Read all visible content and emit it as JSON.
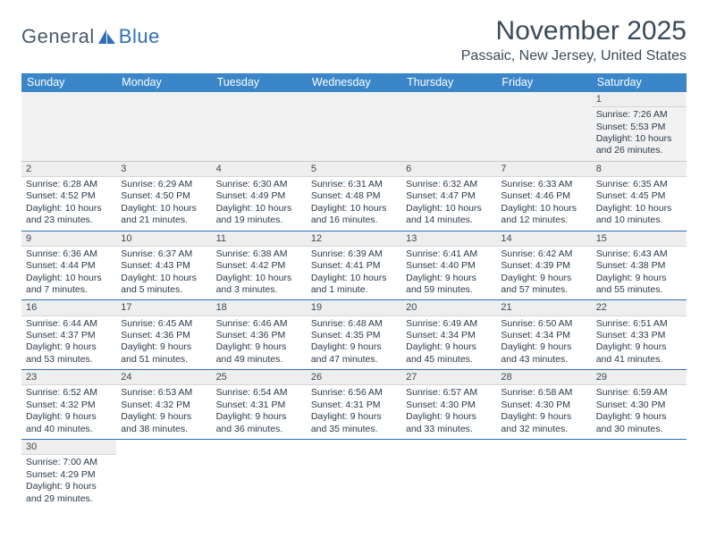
{
  "logo": {
    "part1": "General",
    "part2": "Blue"
  },
  "header": {
    "month_title": "November 2025",
    "location": "Passaic, New Jersey, United States"
  },
  "colors": {
    "header_bg": "#3b86c8",
    "header_text": "#ffffff",
    "divider": "#2e6fb5",
    "daynum_bg": "#eeeeee",
    "body_text": "#2a3a4a"
  },
  "day_headers": [
    "Sunday",
    "Monday",
    "Tuesday",
    "Wednesday",
    "Thursday",
    "Friday",
    "Saturday"
  ],
  "weeks": [
    [
      {
        "n": "",
        "lines": []
      },
      {
        "n": "",
        "lines": []
      },
      {
        "n": "",
        "lines": []
      },
      {
        "n": "",
        "lines": []
      },
      {
        "n": "",
        "lines": []
      },
      {
        "n": "",
        "lines": []
      },
      {
        "n": "1",
        "lines": [
          "Sunrise: 7:26 AM",
          "Sunset: 5:53 PM",
          "Daylight: 10 hours",
          "and 26 minutes."
        ]
      }
    ],
    [
      {
        "n": "2",
        "lines": [
          "Sunrise: 6:28 AM",
          "Sunset: 4:52 PM",
          "Daylight: 10 hours",
          "and 23 minutes."
        ]
      },
      {
        "n": "3",
        "lines": [
          "Sunrise: 6:29 AM",
          "Sunset: 4:50 PM",
          "Daylight: 10 hours",
          "and 21 minutes."
        ]
      },
      {
        "n": "4",
        "lines": [
          "Sunrise: 6:30 AM",
          "Sunset: 4:49 PM",
          "Daylight: 10 hours",
          "and 19 minutes."
        ]
      },
      {
        "n": "5",
        "lines": [
          "Sunrise: 6:31 AM",
          "Sunset: 4:48 PM",
          "Daylight: 10 hours",
          "and 16 minutes."
        ]
      },
      {
        "n": "6",
        "lines": [
          "Sunrise: 6:32 AM",
          "Sunset: 4:47 PM",
          "Daylight: 10 hours",
          "and 14 minutes."
        ]
      },
      {
        "n": "7",
        "lines": [
          "Sunrise: 6:33 AM",
          "Sunset: 4:46 PM",
          "Daylight: 10 hours",
          "and 12 minutes."
        ]
      },
      {
        "n": "8",
        "lines": [
          "Sunrise: 6:35 AM",
          "Sunset: 4:45 PM",
          "Daylight: 10 hours",
          "and 10 minutes."
        ]
      }
    ],
    [
      {
        "n": "9",
        "lines": [
          "Sunrise: 6:36 AM",
          "Sunset: 4:44 PM",
          "Daylight: 10 hours",
          "and 7 minutes."
        ]
      },
      {
        "n": "10",
        "lines": [
          "Sunrise: 6:37 AM",
          "Sunset: 4:43 PM",
          "Daylight: 10 hours",
          "and 5 minutes."
        ]
      },
      {
        "n": "11",
        "lines": [
          "Sunrise: 6:38 AM",
          "Sunset: 4:42 PM",
          "Daylight: 10 hours",
          "and 3 minutes."
        ]
      },
      {
        "n": "12",
        "lines": [
          "Sunrise: 6:39 AM",
          "Sunset: 4:41 PM",
          "Daylight: 10 hours",
          "and 1 minute."
        ]
      },
      {
        "n": "13",
        "lines": [
          "Sunrise: 6:41 AM",
          "Sunset: 4:40 PM",
          "Daylight: 9 hours",
          "and 59 minutes."
        ]
      },
      {
        "n": "14",
        "lines": [
          "Sunrise: 6:42 AM",
          "Sunset: 4:39 PM",
          "Daylight: 9 hours",
          "and 57 minutes."
        ]
      },
      {
        "n": "15",
        "lines": [
          "Sunrise: 6:43 AM",
          "Sunset: 4:38 PM",
          "Daylight: 9 hours",
          "and 55 minutes."
        ]
      }
    ],
    [
      {
        "n": "16",
        "lines": [
          "Sunrise: 6:44 AM",
          "Sunset: 4:37 PM",
          "Daylight: 9 hours",
          "and 53 minutes."
        ]
      },
      {
        "n": "17",
        "lines": [
          "Sunrise: 6:45 AM",
          "Sunset: 4:36 PM",
          "Daylight: 9 hours",
          "and 51 minutes."
        ]
      },
      {
        "n": "18",
        "lines": [
          "Sunrise: 6:46 AM",
          "Sunset: 4:36 PM",
          "Daylight: 9 hours",
          "and 49 minutes."
        ]
      },
      {
        "n": "19",
        "lines": [
          "Sunrise: 6:48 AM",
          "Sunset: 4:35 PM",
          "Daylight: 9 hours",
          "and 47 minutes."
        ]
      },
      {
        "n": "20",
        "lines": [
          "Sunrise: 6:49 AM",
          "Sunset: 4:34 PM",
          "Daylight: 9 hours",
          "and 45 minutes."
        ]
      },
      {
        "n": "21",
        "lines": [
          "Sunrise: 6:50 AM",
          "Sunset: 4:34 PM",
          "Daylight: 9 hours",
          "and 43 minutes."
        ]
      },
      {
        "n": "22",
        "lines": [
          "Sunrise: 6:51 AM",
          "Sunset: 4:33 PM",
          "Daylight: 9 hours",
          "and 41 minutes."
        ]
      }
    ],
    [
      {
        "n": "23",
        "lines": [
          "Sunrise: 6:52 AM",
          "Sunset: 4:32 PM",
          "Daylight: 9 hours",
          "and 40 minutes."
        ]
      },
      {
        "n": "24",
        "lines": [
          "Sunrise: 6:53 AM",
          "Sunset: 4:32 PM",
          "Daylight: 9 hours",
          "and 38 minutes."
        ]
      },
      {
        "n": "25",
        "lines": [
          "Sunrise: 6:54 AM",
          "Sunset: 4:31 PM",
          "Daylight: 9 hours",
          "and 36 minutes."
        ]
      },
      {
        "n": "26",
        "lines": [
          "Sunrise: 6:56 AM",
          "Sunset: 4:31 PM",
          "Daylight: 9 hours",
          "and 35 minutes."
        ]
      },
      {
        "n": "27",
        "lines": [
          "Sunrise: 6:57 AM",
          "Sunset: 4:30 PM",
          "Daylight: 9 hours",
          "and 33 minutes."
        ]
      },
      {
        "n": "28",
        "lines": [
          "Sunrise: 6:58 AM",
          "Sunset: 4:30 PM",
          "Daylight: 9 hours",
          "and 32 minutes."
        ]
      },
      {
        "n": "29",
        "lines": [
          "Sunrise: 6:59 AM",
          "Sunset: 4:30 PM",
          "Daylight: 9 hours",
          "and 30 minutes."
        ]
      }
    ],
    [
      {
        "n": "30",
        "lines": [
          "Sunrise: 7:00 AM",
          "Sunset: 4:29 PM",
          "Daylight: 9 hours",
          "and 29 minutes."
        ]
      },
      {
        "n": "",
        "lines": []
      },
      {
        "n": "",
        "lines": []
      },
      {
        "n": "",
        "lines": []
      },
      {
        "n": "",
        "lines": []
      },
      {
        "n": "",
        "lines": []
      },
      {
        "n": "",
        "lines": []
      }
    ]
  ]
}
